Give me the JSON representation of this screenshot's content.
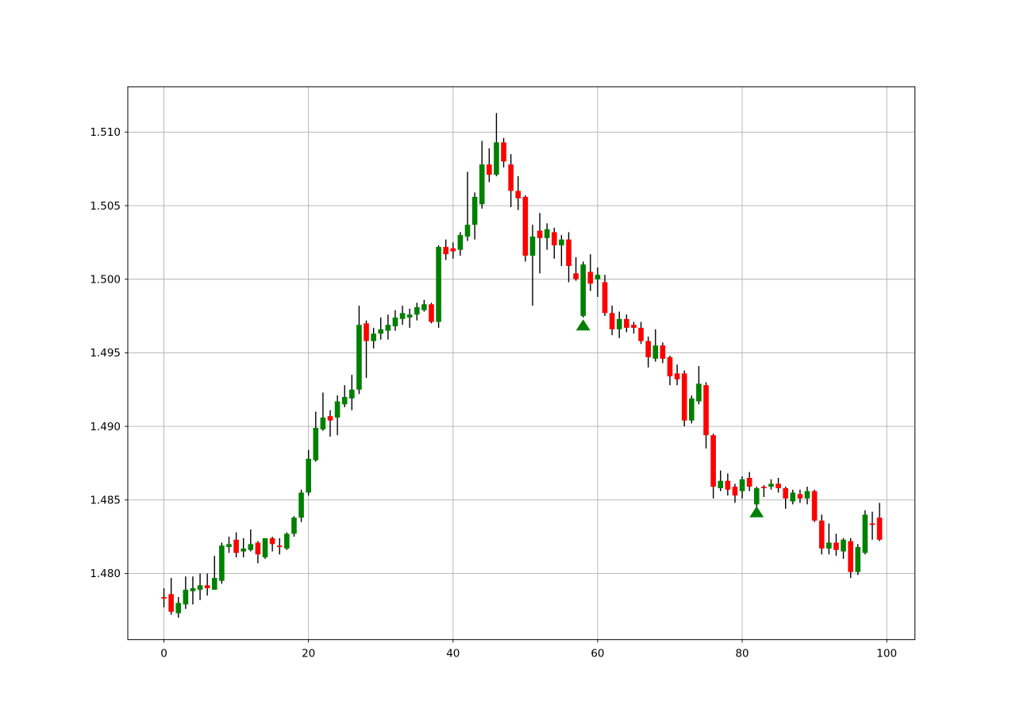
{
  "figure": {
    "background": "#ffffff",
    "title": ""
  },
  "chart_data": {
    "type": "candlestick",
    "title": "",
    "xlabel": "",
    "ylabel": "",
    "grid": true,
    "legend": null,
    "xlim": [
      -5.0,
      103.9
    ],
    "ylim": [
      1.47551,
      1.51308
    ],
    "x_ticks": [
      {
        "value": 0,
        "label": "0"
      },
      {
        "value": 20,
        "label": "20"
      },
      {
        "value": 40,
        "label": "40"
      },
      {
        "value": 60,
        "label": "60"
      },
      {
        "value": 80,
        "label": "80"
      },
      {
        "value": 100,
        "label": "100"
      }
    ],
    "y_ticks": [
      {
        "value": 1.48,
        "label": "1.480"
      },
      {
        "value": 1.485,
        "label": "1.485"
      },
      {
        "value": 1.49,
        "label": "1.490"
      },
      {
        "value": 1.495,
        "label": "1.495"
      },
      {
        "value": 1.5,
        "label": "1.500"
      },
      {
        "value": 1.505,
        "label": "1.505"
      },
      {
        "value": 1.51,
        "label": "1.510"
      }
    ],
    "up_color": "#008000",
    "down_color": "#ff0000",
    "wick_color": "#000000",
    "grid_color": "#b0b0b0",
    "axis_color": "#000000",
    "ohlc": [
      [
        1.4784,
        1.479,
        1.4777,
        1.4783
      ],
      [
        1.4786,
        1.4797,
        1.4772,
        1.4774
      ],
      [
        1.4773,
        1.4784,
        1.477,
        1.478
      ],
      [
        1.4779,
        1.4798,
        1.4776,
        1.4789
      ],
      [
        1.4788,
        1.4798,
        1.4779,
        1.479
      ],
      [
        1.4789,
        1.48,
        1.4782,
        1.4792
      ],
      [
        1.4792,
        1.48,
        1.4785,
        1.479
      ],
      [
        1.4789,
        1.4812,
        1.4789,
        1.4797
      ],
      [
        1.4795,
        1.4821,
        1.4793,
        1.4819
      ],
      [
        1.4818,
        1.4825,
        1.4814,
        1.482
      ],
      [
        1.4823,
        1.4828,
        1.4811,
        1.4814
      ],
      [
        1.4815,
        1.4824,
        1.4811,
        1.4817
      ],
      [
        1.4816,
        1.483,
        1.4815,
        1.482
      ],
      [
        1.4821,
        1.4822,
        1.4807,
        1.4813
      ],
      [
        1.4811,
        1.4824,
        1.481,
        1.4824
      ],
      [
        1.4824,
        1.4825,
        1.4815,
        1.482
      ],
      [
        1.4819,
        1.4824,
        1.4813,
        1.4818
      ],
      [
        1.4817,
        1.4828,
        1.4816,
        1.4827
      ],
      [
        1.4827,
        1.4839,
        1.4825,
        1.4838
      ],
      [
        1.4838,
        1.4857,
        1.4835,
        1.4855
      ],
      [
        1.4855,
        1.4884,
        1.4853,
        1.4878
      ],
      [
        1.4877,
        1.491,
        1.4876,
        1.4899
      ],
      [
        1.4898,
        1.4923,
        1.4897,
        1.4906
      ],
      [
        1.4907,
        1.4911,
        1.4893,
        1.4904
      ],
      [
        1.4906,
        1.4921,
        1.4894,
        1.4917
      ],
      [
        1.4915,
        1.4928,
        1.4913,
        1.492
      ],
      [
        1.4919,
        1.4935,
        1.4911,
        1.4925
      ],
      [
        1.4925,
        1.4982,
        1.4922,
        1.4969
      ],
      [
        1.497,
        1.4972,
        1.4933,
        1.4958
      ],
      [
        1.4958,
        1.4967,
        1.4953,
        1.4963
      ],
      [
        1.4963,
        1.4974,
        1.4959,
        1.4966
      ],
      [
        1.4965,
        1.4976,
        1.4959,
        1.4969
      ],
      [
        1.4968,
        1.4979,
        1.4965,
        1.4974
      ],
      [
        1.4973,
        1.4982,
        1.4969,
        1.4977
      ],
      [
        1.4974,
        1.498,
        1.4967,
        1.4976
      ],
      [
        1.4976,
        1.4984,
        1.4972,
        1.4981
      ],
      [
        1.4979,
        1.4986,
        1.4978,
        1.4983
      ],
      [
        1.4983,
        1.4984,
        1.497,
        1.4971
      ],
      [
        1.4971,
        1.5023,
        1.4967,
        1.5022
      ],
      [
        1.5022,
        1.5027,
        1.5013,
        1.5017
      ],
      [
        1.5021,
        1.5025,
        1.5014,
        1.5019
      ],
      [
        1.502,
        1.5032,
        1.5016,
        1.503
      ],
      [
        1.5029,
        1.5073,
        1.5026,
        1.5037
      ],
      [
        1.5037,
        1.5059,
        1.5027,
        1.5056
      ],
      [
        1.5051,
        1.5094,
        1.5048,
        1.5078
      ],
      [
        1.5078,
        1.5089,
        1.5066,
        1.5071
      ],
      [
        1.5071,
        1.5113,
        1.507,
        1.5093
      ],
      [
        1.5093,
        1.5096,
        1.5076,
        1.508
      ],
      [
        1.5078,
        1.5085,
        1.5049,
        1.506
      ],
      [
        1.506,
        1.507,
        1.5047,
        1.5055
      ],
      [
        1.5056,
        1.5057,
        1.5012,
        1.5016
      ],
      [
        1.5016,
        1.5037,
        1.4982,
        1.5029
      ],
      [
        1.5033,
        1.5045,
        1.5004,
        1.5028
      ],
      [
        1.5028,
        1.5038,
        1.502,
        1.5034
      ],
      [
        1.5032,
        1.5035,
        1.5014,
        1.5023
      ],
      [
        1.5023,
        1.503,
        1.5009,
        1.5027
      ],
      [
        1.5027,
        1.5032,
        1.4998,
        1.5009
      ],
      [
        1.5004,
        1.5015,
        1.4999,
        1.5
      ],
      [
        1.4975,
        1.5012,
        1.4974,
        1.501
      ],
      [
        1.5005,
        1.5017,
        1.4992,
        1.4997
      ],
      [
        1.5,
        1.5008,
        1.4988,
        1.5003
      ],
      [
        1.4998,
        1.5003,
        1.4975,
        1.4977
      ],
      [
        1.4977,
        1.4982,
        1.4962,
        1.4966
      ],
      [
        1.4966,
        1.4978,
        1.496,
        1.4973
      ],
      [
        1.4973,
        1.4976,
        1.4964,
        1.4967
      ],
      [
        1.4969,
        1.4971,
        1.4963,
        1.4967
      ],
      [
        1.4967,
        1.4971,
        1.4956,
        1.4958
      ],
      [
        1.4958,
        1.4961,
        1.494,
        1.4947
      ],
      [
        1.4946,
        1.4966,
        1.4944,
        1.4955
      ],
      [
        1.4955,
        1.4957,
        1.4943,
        1.4946
      ],
      [
        1.4947,
        1.4948,
        1.4928,
        1.4934
      ],
      [
        1.4936,
        1.4942,
        1.4928,
        1.4932
      ],
      [
        1.4936,
        1.4938,
        1.49,
        1.4904
      ],
      [
        1.4904,
        1.4921,
        1.4902,
        1.4919
      ],
      [
        1.4917,
        1.4941,
        1.4915,
        1.4929
      ],
      [
        1.4928,
        1.493,
        1.4885,
        1.4894
      ],
      [
        1.4894,
        1.4895,
        1.4851,
        1.4859
      ],
      [
        1.4858,
        1.487,
        1.4856,
        1.4863
      ],
      [
        1.4863,
        1.4868,
        1.4853,
        1.4857
      ],
      [
        1.4859,
        1.4861,
        1.4848,
        1.4853
      ],
      [
        1.4856,
        1.4866,
        1.4851,
        1.4864
      ],
      [
        1.4865,
        1.4869,
        1.4856,
        1.4859
      ],
      [
        1.4847,
        1.4859,
        1.4845,
        1.4858
      ],
      [
        1.4859,
        1.486,
        1.4852,
        1.4858
      ],
      [
        1.4859,
        1.4864,
        1.4857,
        1.4861
      ],
      [
        1.4861,
        1.4865,
        1.4855,
        1.4858
      ],
      [
        1.4858,
        1.4859,
        1.4844,
        1.4851
      ],
      [
        1.4849,
        1.4857,
        1.4847,
        1.4855
      ],
      [
        1.4854,
        1.4857,
        1.4848,
        1.4851
      ],
      [
        1.4851,
        1.4859,
        1.4847,
        1.4856
      ],
      [
        1.4856,
        1.4857,
        1.4835,
        1.4836
      ],
      [
        1.4836,
        1.484,
        1.4813,
        1.4817
      ],
      [
        1.4817,
        1.4834,
        1.4813,
        1.4821
      ],
      [
        1.4821,
        1.4827,
        1.4812,
        1.4816
      ],
      [
        1.4815,
        1.4824,
        1.481,
        1.4823
      ],
      [
        1.4822,
        1.4824,
        1.4797,
        1.4801
      ],
      [
        1.4801,
        1.482,
        1.4799,
        1.4818
      ],
      [
        1.4814,
        1.4843,
        1.4813,
        1.484
      ],
      [
        1.4834,
        1.4842,
        1.4823,
        1.4833
      ],
      [
        1.4838,
        1.4848,
        1.4822,
        1.4823
      ]
    ],
    "markers": [
      {
        "x": 58,
        "value": 1.4969,
        "symbol": "triangle-up",
        "color": "#008000"
      },
      {
        "x": 82,
        "value": 1.4842,
        "symbol": "triangle-up",
        "color": "#008000"
      }
    ]
  }
}
